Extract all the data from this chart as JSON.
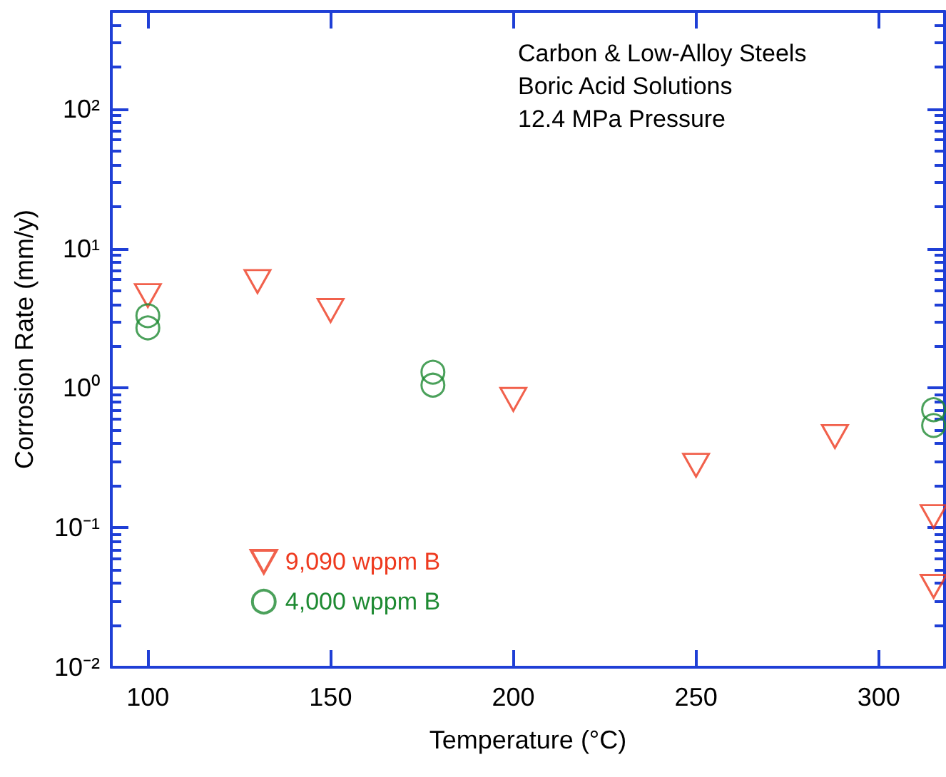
{
  "chart_data": {
    "type": "scatter",
    "xlabel": "Temperature (°C)",
    "ylabel": "Corrosion Rate (mm/y)",
    "log": "y",
    "grid": false,
    "legend": "bottom left",
    "annotations": [
      "Carbon & Low-Alloy Steels",
      "Boric Acid Solutions",
      "12.4 MPa Pressure"
    ],
    "xlim": [
      90,
      318
    ],
    "xticks": [
      100,
      150,
      200,
      250,
      300
    ],
    "ylim": [
      0.01,
      500
    ],
    "yticks": [
      {
        "value": 0.01,
        "label": "10⁻²"
      },
      {
        "value": 0.1,
        "label": "10⁻¹"
      },
      {
        "value": 1,
        "label": "10⁰"
      },
      {
        "value": 10,
        "label": "10¹"
      },
      {
        "value": 100,
        "label": "10²"
      }
    ],
    "series": [
      {
        "name": "9,090 wppm B",
        "color": "#ee3a1f",
        "marker": "triangle",
        "x": [
          100,
          130,
          150,
          200,
          250,
          288,
          315,
          315
        ],
        "values": [
          4.6,
          5.8,
          3.6,
          0.83,
          0.28,
          0.45,
          0.12,
          0.038
        ]
      },
      {
        "name": "4,000 wppm B",
        "color": "#1e8a32",
        "marker": "circle",
        "x": [
          100,
          100,
          178,
          178,
          315,
          315
        ],
        "values": [
          3.3,
          2.7,
          1.3,
          1.05,
          0.7,
          0.54
        ]
      }
    ]
  }
}
